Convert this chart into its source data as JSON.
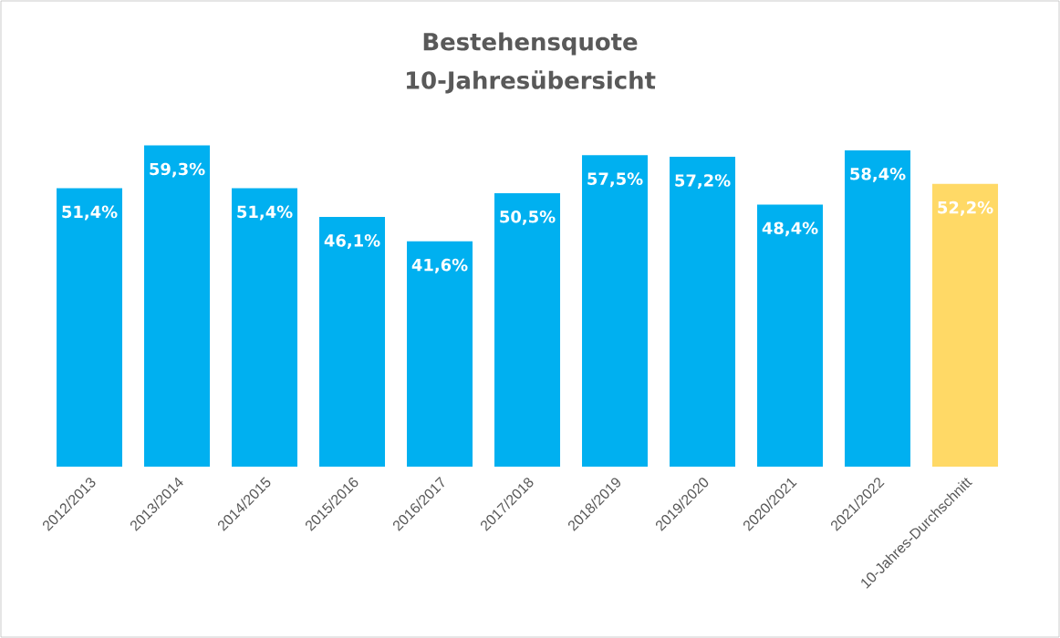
{
  "chart_data": {
    "type": "bar",
    "title": "Bestehensquote",
    "subtitle": "10-Jahresübersicht",
    "categories": [
      "2012/2013",
      "2013/2014",
      "2014/2015",
      "2015/2016",
      "2016/2017",
      "2017/2018",
      "2018/2019",
      "2019/2020",
      "2020/2021",
      "2021/2022",
      "10-Jahres-Durchschnitt"
    ],
    "values": [
      51.4,
      59.3,
      51.4,
      46.1,
      41.6,
      50.5,
      57.5,
      57.2,
      48.4,
      58.4,
      52.2
    ],
    "value_labels": [
      "51,4%",
      "59,3%",
      "51,4%",
      "46,1%",
      "41,6%",
      "50,5%",
      "57,5%",
      "57,2%",
      "48,4%",
      "58,4%",
      "52,2%"
    ],
    "colors": [
      "#00b0f0",
      "#00b0f0",
      "#00b0f0",
      "#00b0f0",
      "#00b0f0",
      "#00b0f0",
      "#00b0f0",
      "#00b0f0",
      "#00b0f0",
      "#00b0f0",
      "#ffd966"
    ]
  }
}
